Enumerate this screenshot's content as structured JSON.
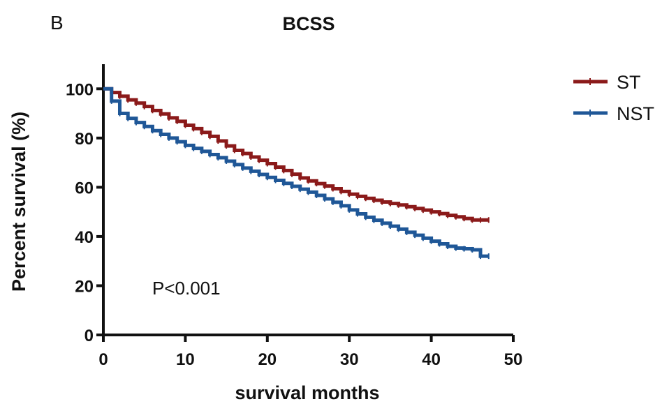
{
  "panel_label": "B",
  "chart_data": {
    "type": "line",
    "title": "BCSS",
    "xlabel": "survival months",
    "ylabel": "Percent survival (%)",
    "xlim": [
      0,
      50
    ],
    "ylim": [
      0,
      110
    ],
    "x_ticks": [
      0,
      10,
      20,
      30,
      40,
      50
    ],
    "y_ticks": [
      0,
      20,
      40,
      60,
      80,
      100
    ],
    "grid": false,
    "legend_position": "top-right",
    "annotation": "P<0.001",
    "series": [
      {
        "name": "ST",
        "color": "#8b1a1a",
        "x": [
          0,
          1,
          2,
          3,
          4,
          5,
          6,
          7,
          8,
          9,
          10,
          11,
          12,
          13,
          14,
          15,
          16,
          17,
          18,
          19,
          20,
          21,
          22,
          23,
          24,
          25,
          26,
          27,
          28,
          29,
          30,
          31,
          32,
          33,
          34,
          35,
          36,
          37,
          38,
          39,
          40,
          41,
          42,
          43,
          44,
          45,
          46,
          47
        ],
        "y": [
          100,
          98.5,
          97,
          95.5,
          94.2,
          92.8,
          91.2,
          89.8,
          88.2,
          86.8,
          85.2,
          83.8,
          82.3,
          80.7,
          78.8,
          76.8,
          75,
          73.7,
          72.3,
          71,
          69.6,
          68.2,
          66.8,
          65.3,
          63.8,
          62.6,
          61.5,
          60.5,
          59.4,
          58.3,
          57.2,
          56.3,
          55.5,
          54.7,
          54,
          53.4,
          52.8,
          52.1,
          51.4,
          50.7,
          50,
          49.3,
          48.6,
          48,
          47.3,
          46.7,
          46.7,
          46.7
        ]
      },
      {
        "name": "NST",
        "color": "#1f5797",
        "x": [
          0,
          1,
          2,
          3,
          4,
          5,
          6,
          7,
          8,
          9,
          10,
          11,
          12,
          13,
          14,
          15,
          16,
          17,
          18,
          19,
          20,
          21,
          22,
          23,
          24,
          25,
          26,
          27,
          28,
          29,
          30,
          31,
          32,
          33,
          34,
          35,
          36,
          37,
          38,
          39,
          40,
          41,
          42,
          43,
          44,
          45,
          46,
          47
        ],
        "y": [
          100,
          95,
          90,
          88,
          86.3,
          84.7,
          83,
          81.5,
          80,
          78.5,
          77,
          75.8,
          74.6,
          73.3,
          72,
          70.6,
          69.2,
          67.8,
          66.5,
          65.2,
          64,
          62.8,
          61.6,
          60.4,
          59.2,
          58,
          56.7,
          55.3,
          53.9,
          52.5,
          50.8,
          49.2,
          47.8,
          46.6,
          45.4,
          44.2,
          43,
          41.7,
          40.5,
          39.3,
          38.1,
          37,
          36,
          35.3,
          35,
          34.6,
          32,
          32
        ]
      }
    ]
  }
}
